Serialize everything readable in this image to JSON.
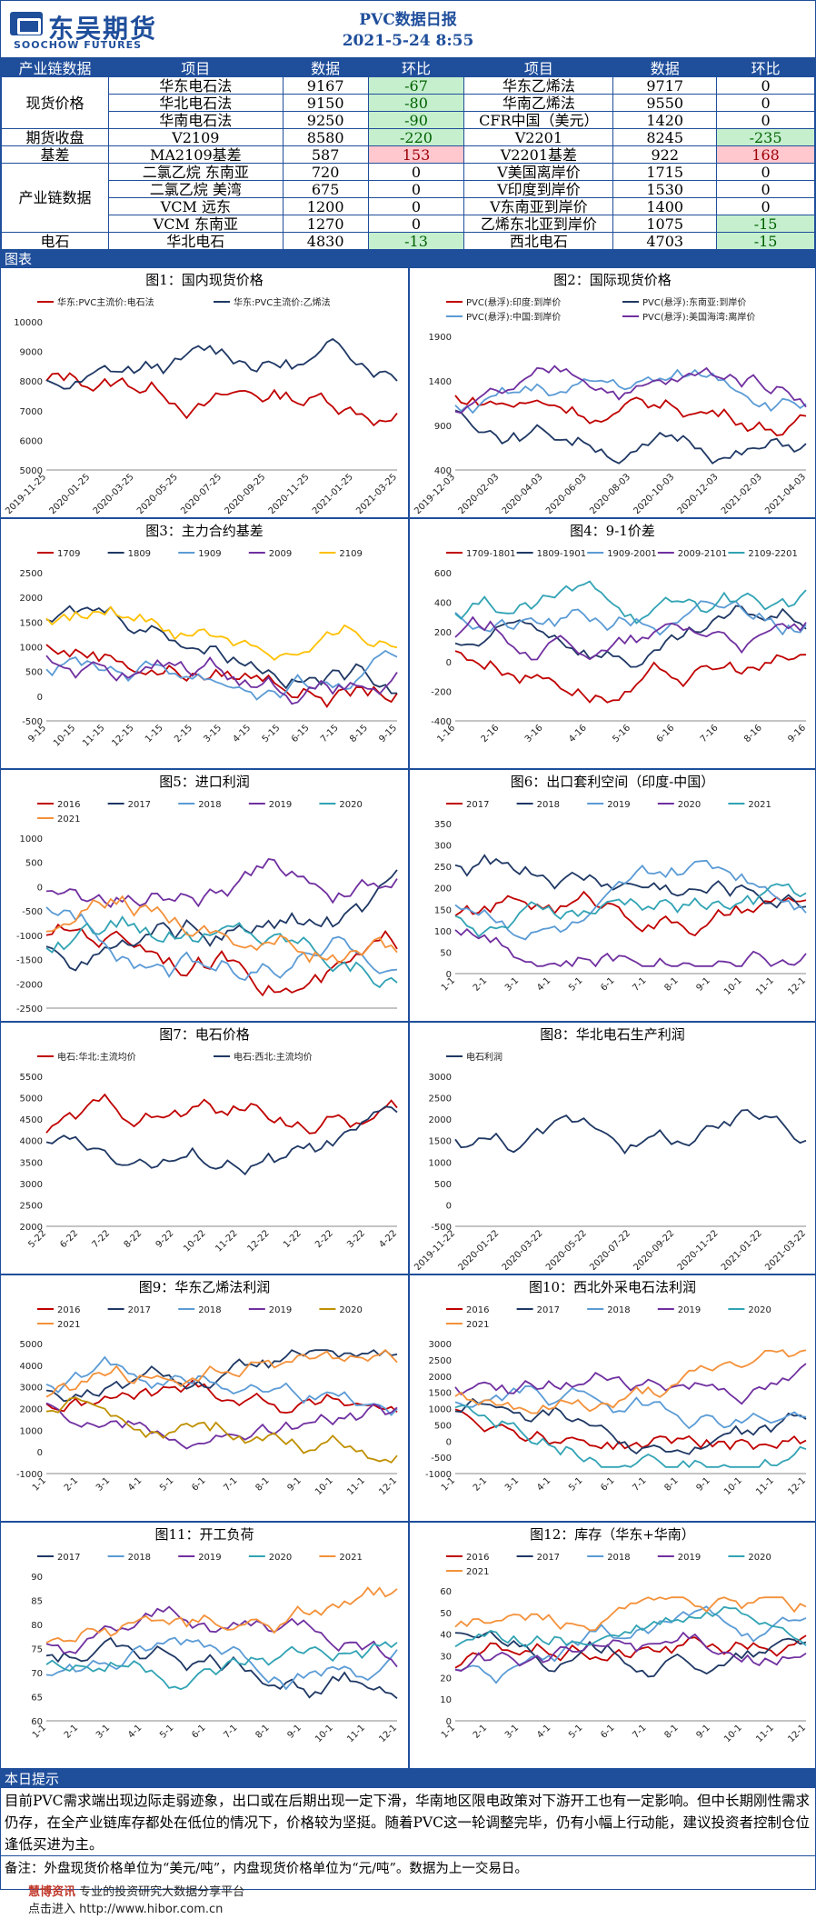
{
  "header": {
    "logo_cn": "东吴期货",
    "logo_en": "SOOCHOW FUTURES",
    "title": "PVC数据日报",
    "date": "2021-5-24  8:55"
  },
  "table": {
    "headers": [
      "产业链数据",
      "项目",
      "数据",
      "环比",
      "项目",
      "数据",
      "环比"
    ],
    "groups": [
      {
        "cat": "现货价格",
        "rows": [
          [
            "华东电石法",
            "9167",
            "-67",
            "华东乙烯法",
            "9717",
            "0"
          ],
          [
            "华北电石法",
            "9150",
            "-80",
            "华南乙烯法",
            "9550",
            "0"
          ],
          [
            "华南电石法",
            "9250",
            "-90",
            "CFR中国（美元）",
            "1420",
            "0"
          ]
        ]
      },
      {
        "cat": "期货收盘",
        "rows": [
          [
            "V2109",
            "8580",
            "-220",
            "V2201",
            "8245",
            "-235"
          ]
        ]
      },
      {
        "cat": "基差",
        "rows": [
          [
            "MA2109基差",
            "587",
            "153",
            "V2201基差",
            "922",
            "168"
          ]
        ]
      },
      {
        "cat": "产业链数据",
        "rows": [
          [
            "二氯乙烷 东南亚",
            "720",
            "0",
            "V美国离岸价",
            "1715",
            "0"
          ],
          [
            "二氯乙烷 美湾",
            "675",
            "0",
            "V印度到岸价",
            "1530",
            "0"
          ],
          [
            "VCM 远东",
            "1200",
            "0",
            "V东南亚到岸价",
            "1400",
            "0"
          ],
          [
            "VCM 东南亚",
            "1270",
            "0",
            "乙烯东北亚到岸价",
            "1075",
            "-15"
          ]
        ]
      },
      {
        "cat": "电石",
        "rows": [
          [
            "华北电石",
            "4830",
            "-13",
            "西北电石",
            "4703",
            "-15"
          ]
        ]
      }
    ]
  },
  "charts_label": "图表",
  "charts": [
    {
      "title": "图1：国内现货价格",
      "legend": [
        "华东:PVC主流价:电石法",
        "华东:PVC主流价:乙烯法"
      ],
      "colors": [
        "#c00000",
        "#1f3864"
      ],
      "yticks": [
        "10000",
        "9000",
        "8000",
        "7000",
        "6000",
        "5000"
      ],
      "xticks": [
        "2019-11-25",
        "2020-01-25",
        "2020-03-25",
        "2020-05-25",
        "2020-07-25",
        "2020-09-25",
        "2020-11-25",
        "2021-01-25",
        "2021-03-25"
      ]
    },
    {
      "title": "图2：国际现货价格",
      "legend": [
        "PVC(悬浮):印度:到岸价",
        "PVC(悬浮):东南亚:到岸价",
        "PVC(悬浮):中国:到岸价",
        "PVC(悬浮):美国海湾:离岸价"
      ],
      "colors": [
        "#c00000",
        "#1f3864",
        "#5b9bd5",
        "#7030a0"
      ],
      "yticks": [
        "1900",
        "1400",
        "900",
        "400"
      ],
      "xticks": [
        "2019-12-03",
        "2020-02-03",
        "2020-04-03",
        "2020-06-03",
        "2020-08-03",
        "2020-10-03",
        "2020-12-03",
        "2021-02-03",
        "2021-04-03"
      ]
    },
    {
      "title": "图3：主力合约基差",
      "legend": [
        "1709",
        "1809",
        "1909",
        "2009",
        "2109"
      ],
      "colors": [
        "#c00000",
        "#1f3864",
        "#5b9bd5",
        "#7030a0",
        "#ffc000"
      ],
      "yticks": [
        "2500",
        "2000",
        "1500",
        "1000",
        "500",
        "0",
        "-500"
      ],
      "xticks": [
        "9-15",
        "10-15",
        "11-15",
        "12-15",
        "1-15",
        "2-15",
        "3-15",
        "4-15",
        "5-15",
        "6-15",
        "7-15",
        "8-15",
        "9-15"
      ]
    },
    {
      "title": "图4：9-1价差",
      "legend": [
        "1709-1801",
        "1809-1901",
        "1909-2001",
        "2009-2101",
        "2109-2201"
      ],
      "colors": [
        "#c00000",
        "#1f3864",
        "#5b9bd5",
        "#7030a0",
        "#31a3b4"
      ],
      "yticks": [
        "600",
        "400",
        "200",
        "0",
        "-200",
        "-400"
      ],
      "xticks": [
        "1-16",
        "2-16",
        "3-16",
        "4-16",
        "5-16",
        "6-16",
        "7-16",
        "8-16",
        "9-16"
      ]
    },
    {
      "title": "图5：进口利润",
      "legend": [
        "2016",
        "2017",
        "2018",
        "2019",
        "2020",
        "2021"
      ],
      "colors": [
        "#c00000",
        "#1f3864",
        "#5b9bd5",
        "#7030a0",
        "#31a3b4",
        "#f4913a"
      ],
      "yticks": [
        "1000",
        "500",
        "0",
        "-500",
        "-1000",
        "-1500",
        "-2000",
        "-2500"
      ],
      "xticks": []
    },
    {
      "title": "图6：出口套利空间（印度-中国）",
      "legend": [
        "2017",
        "2018",
        "2019",
        "2020",
        "2021"
      ],
      "colors": [
        "#c00000",
        "#1f3864",
        "#5b9bd5",
        "#7030a0",
        "#31a3b4"
      ],
      "yticks": [
        "350",
        "300",
        "250",
        "200",
        "150",
        "100",
        "50",
        "0"
      ],
      "xticks": [
        "1-1",
        "2-1",
        "3-1",
        "4-1",
        "5-1",
        "6-1",
        "7-1",
        "8-1",
        "9-1",
        "10-1",
        "11-1",
        "12-1"
      ]
    },
    {
      "title": "图7：电石价格",
      "legend": [
        "电石:华北:主流均价",
        "电石:西北:主流均价"
      ],
      "colors": [
        "#c00000",
        "#1f3864"
      ],
      "yticks": [
        "5500",
        "5000",
        "4500",
        "4000",
        "3500",
        "3000",
        "2500",
        "2000"
      ],
      "xticks": [
        "5-22",
        "6-22",
        "7-22",
        "8-22",
        "9-22",
        "10-22",
        "11-22",
        "12-22",
        "1-22",
        "2-22",
        "3-22",
        "4-22"
      ]
    },
    {
      "title": "图8：华北电石生产利润",
      "legend": [
        "电石利润"
      ],
      "colors": [
        "#1f3864"
      ],
      "yticks": [
        "3000",
        "2500",
        "2000",
        "1500",
        "1000",
        "500",
        "0",
        "-500"
      ],
      "xticks": [
        "2019-11-22",
        "2020-01-22",
        "2020-03-22",
        "2020-05-22",
        "2020-07-22",
        "2020-09-22",
        "2020-11-22",
        "2021-01-22",
        "2021-03-22"
      ]
    },
    {
      "title": "图9：华东乙烯法利润",
      "legend": [
        "2016",
        "2017",
        "2018",
        "2019",
        "2020",
        "2021"
      ],
      "colors": [
        "#c00000",
        "#1f3864",
        "#5b9bd5",
        "#7030a0",
        "#bf9000",
        "#f4913a"
      ],
      "yticks": [
        "5000",
        "4000",
        "3000",
        "2000",
        "1000",
        "0",
        "-1000"
      ],
      "xticks": [
        "1-1",
        "2-1",
        "3-1",
        "4-1",
        "5-1",
        "6-1",
        "7-1",
        "8-1",
        "9-1",
        "10-1",
        "11-1",
        "12-1"
      ]
    },
    {
      "title": "图10：西北外采电石法利润",
      "legend": [
        "2016",
        "2017",
        "2018",
        "2019",
        "2020",
        "2021"
      ],
      "colors": [
        "#c00000",
        "#1f3864",
        "#5b9bd5",
        "#7030a0",
        "#31a3b4",
        "#f4913a"
      ],
      "yticks": [
        "3000",
        "2500",
        "2000",
        "1500",
        "1000",
        "500",
        "0",
        "-500",
        "-1000"
      ],
      "xticks": [
        "1-1",
        "2-1",
        "3-1",
        "4-1",
        "5-1",
        "6-1",
        "7-1",
        "8-1",
        "9-1",
        "10-1",
        "11-1",
        "12-1"
      ]
    },
    {
      "title": "图11：开工负荷",
      "legend": [
        "2017",
        "2018",
        "2019",
        "2020",
        "2021"
      ],
      "colors": [
        "#1f3864",
        "#5b9bd5",
        "#7030a0",
        "#31a3b4",
        "#f4913a"
      ],
      "yticks": [
        "90",
        "85",
        "80",
        "75",
        "70",
        "65",
        "60"
      ],
      "xticks": [
        "1-1",
        "2-1",
        "3-1",
        "4-1",
        "5-1",
        "6-1",
        "7-1",
        "8-1",
        "9-1",
        "10-1",
        "11-1",
        "12-1"
      ]
    },
    {
      "title": "图12：库存（华东+华南）",
      "legend": [
        "2016",
        "2017",
        "2018",
        "2019",
        "2020",
        "2021"
      ],
      "colors": [
        "#c00000",
        "#1f3864",
        "#5b9bd5",
        "#7030a0",
        "#31a3b4",
        "#f4913a"
      ],
      "yticks": [
        "60",
        "50",
        "40",
        "30",
        "20",
        "10",
        "0"
      ],
      "xticks": [
        "1-1",
        "2-1",
        "3-1",
        "4-1",
        "5-1",
        "6-1",
        "7-1",
        "8-1",
        "9-1",
        "10-1",
        "11-1",
        "12-1"
      ]
    }
  ],
  "tips_label": "本日提示",
  "tips_text": "目前PVC需求端出现边际走弱迹象，出口或在后期出现一定下滑，华南地区限电政策对下游开工也有一定影响。但中长期刚性需求仍存，在全产业链库存都处在低位的情况下，价格较为坚挺。随着PVC这一轮调整完毕，仍有小幅上行动能，建议投资者控制仓位逢低买进为主。",
  "note_text": "备注：外盘现货价格单位为“美元/吨”，内盘现货价格单位为“元/吨”。数据为上一交易日。",
  "footer": {
    "watermark": "慧博资讯",
    "slogan": "专业的投资研究大数据分享平台",
    "link": "点击进入 http://www.hibor.com.cn"
  }
}
